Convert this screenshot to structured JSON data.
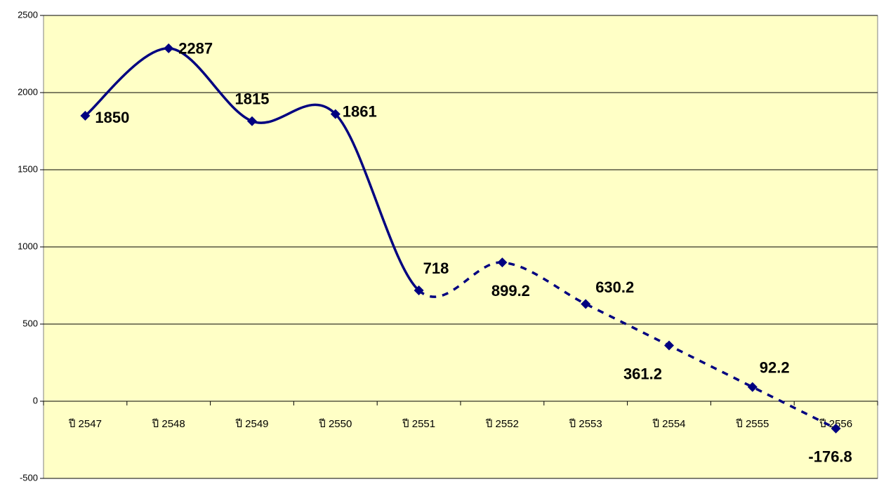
{
  "chart_data": {
    "type": "line",
    "categories": [
      "ปี 2547",
      "ปี 2548",
      "ปี 2549",
      "ปี 2550",
      "ปี 2551",
      "ปี 2552",
      "ปี 2553",
      "ปี 2554",
      "ปี 2555",
      "ปี 2556"
    ],
    "values": [
      1850,
      2287,
      1815,
      1861,
      718,
      899.2,
      630.2,
      361.2,
      92.2,
      -176.8
    ],
    "color": "#000080",
    "dash_start_index": 4,
    "smooth": true,
    "ylim": [
      -500,
      2500
    ],
    "yticks": [
      -500,
      0,
      500,
      1000,
      1500,
      2000,
      2500
    ],
    "grid": true,
    "background": "#ffffc6"
  }
}
